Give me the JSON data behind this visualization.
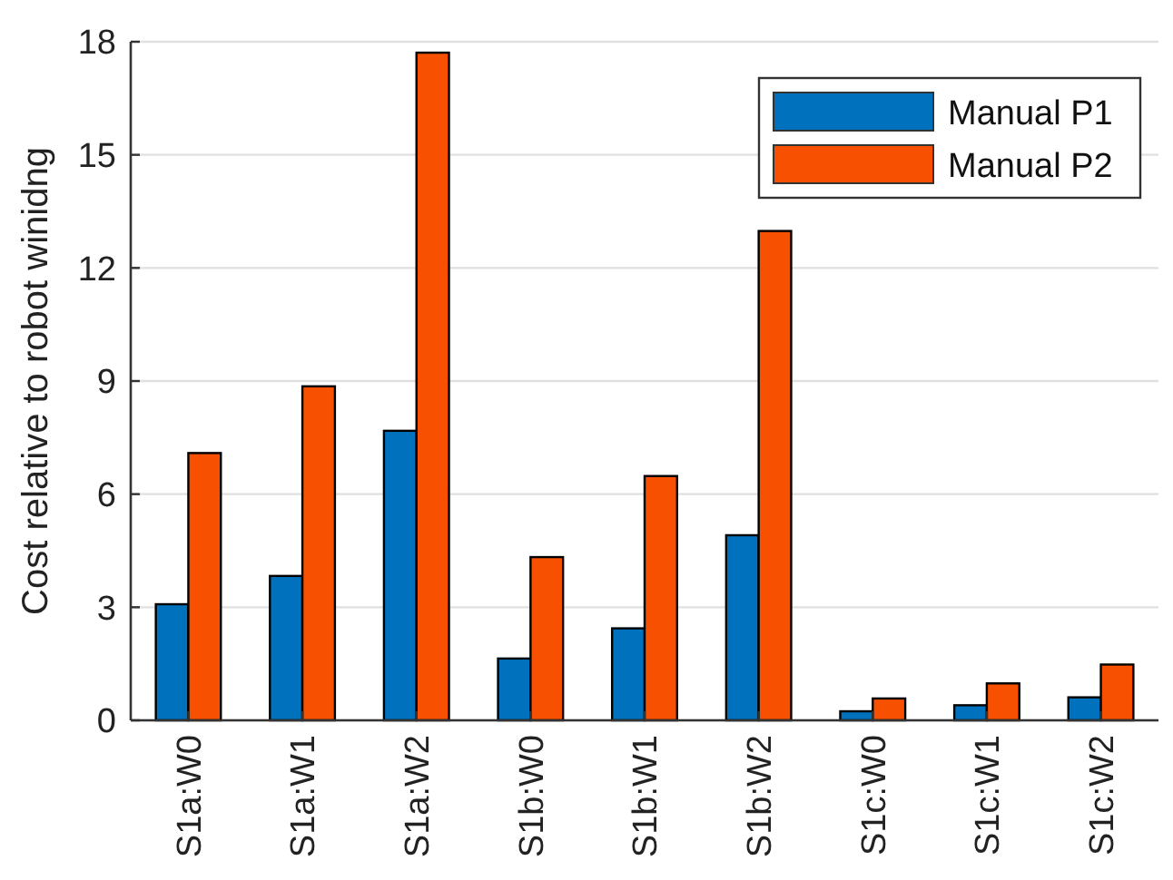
{
  "chart_data": {
    "type": "bar",
    "ylabel": "Cost relative to robot winidng",
    "categories": [
      "S1a:W0",
      "S1a:W1",
      "S1a:W2",
      "S1b:W0",
      "S1b:W1",
      "S1b:W2",
      "S1c:W0",
      "S1c:W1",
      "S1c:W2"
    ],
    "series": [
      {
        "name": "Manual P1",
        "color": "#0072bd",
        "values": [
          3.08,
          3.83,
          7.68,
          1.64,
          2.44,
          4.91,
          0.24,
          0.4,
          0.61
        ]
      },
      {
        "name": "Manual P2",
        "color": "#f75000",
        "values": [
          7.09,
          8.86,
          17.71,
          4.33,
          6.48,
          12.98,
          0.58,
          0.98,
          1.48
        ]
      }
    ],
    "ylim": [
      0,
      18
    ],
    "yticks": [
      0,
      3,
      6,
      9,
      12,
      15,
      18
    ],
    "grid": "y",
    "legend": "top right"
  }
}
